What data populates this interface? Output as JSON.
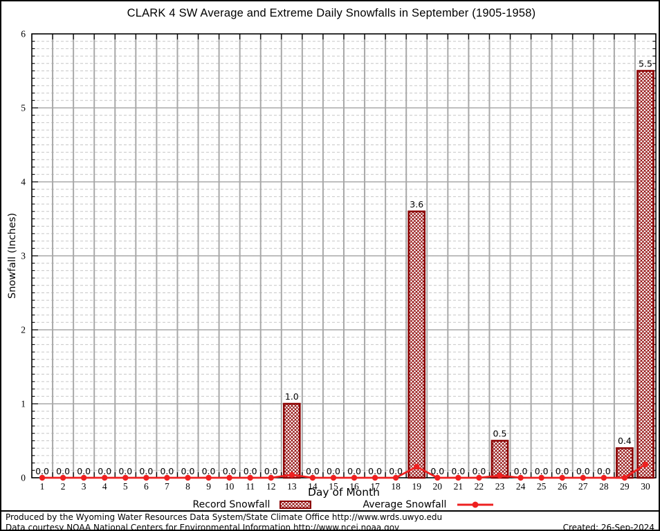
{
  "title": "CLARK 4 SW Average and Extreme Daily Snowfalls in September (1905-1958)",
  "chart_data": {
    "type": "bar",
    "title": "CLARK 4 SW Average and Extreme Daily Snowfalls in September (1905-1958)",
    "xlabel": "Day of Month",
    "ylabel": "Snowfall (Inches)",
    "x": [
      1,
      2,
      3,
      4,
      5,
      6,
      7,
      8,
      9,
      10,
      11,
      12,
      13,
      14,
      15,
      16,
      17,
      18,
      19,
      20,
      21,
      22,
      23,
      24,
      25,
      26,
      27,
      28,
      29,
      30
    ],
    "ylim": [
      0,
      6
    ],
    "y_major_step": 1,
    "y_minor_step": 0.1,
    "grid": "major vertical solid, minor horizontal dashed",
    "legend_position": "bottom",
    "series": [
      {
        "name": "Record Snowfall",
        "type": "bar",
        "color": "#8b0000",
        "values": [
          0,
          0,
          0,
          0,
          0,
          0,
          0,
          0,
          0,
          0,
          0,
          0,
          1.0,
          0,
          0,
          0,
          0,
          0,
          3.6,
          0,
          0,
          0,
          0.5,
          0,
          0,
          0,
          0,
          0,
          0.4,
          5.5
        ],
        "labels": [
          "0.0",
          "0.0",
          "0.0",
          "0.0",
          "0.0",
          "0.0",
          "0.0",
          "0.0",
          "0.0",
          "0.0",
          "0.0",
          "0.0",
          "1.0",
          "0.0",
          "0.0",
          "0.0",
          "0.0",
          "0.0",
          "3.6",
          "0.0",
          "0.0",
          "0.0",
          "0.5",
          "0.0",
          "0.0",
          "0.0",
          "0.0",
          "0.0",
          "0.4",
          "5.5"
        ]
      },
      {
        "name": "Average Snowfall",
        "type": "line",
        "color": "#ee2020",
        "values": [
          0,
          0,
          0,
          0,
          0,
          0,
          0,
          0,
          0,
          0,
          0,
          0,
          0.04,
          0,
          0,
          0,
          0,
          0,
          0.15,
          0,
          0,
          0,
          0.03,
          0,
          0,
          0,
          0,
          0,
          0,
          0.18
        ]
      }
    ]
  },
  "colors": {
    "bar_dark_red": "#8b0000",
    "line_red": "#ee2020",
    "grid_major": "#a8a8a8",
    "grid_minor": "#c6c6c6",
    "frame": "#000000"
  },
  "footer": {
    "line1": "Produced by the Wyoming Water Resources Data System/State Climate Office http://www.wrds.uwyo.edu",
    "line2": "Data courtesy NOAA National Centers for Environmental Information http://www.ncei.noaa.gov",
    "created": "Created: 26-Sep-2024"
  }
}
